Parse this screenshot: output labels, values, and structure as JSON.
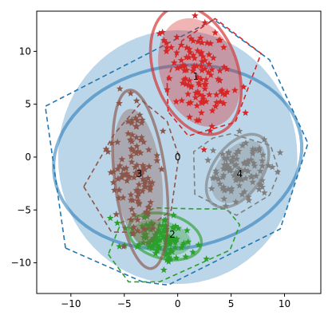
{
  "chart_data": {
    "type": "scatter",
    "title": "",
    "xlabel": "",
    "ylabel": "",
    "xlim": [
      -13.2,
      13.4
    ],
    "ylim": [
      -12.9,
      13.8
    ],
    "x_ticks": [
      -10,
      -5,
      0,
      5,
      10
    ],
    "y_ticks": [
      -10,
      -5,
      0,
      5,
      10
    ],
    "x_tick_labels": [
      "−10",
      "−5",
      "0",
      "5",
      "10"
    ],
    "y_tick_labels": [
      "−10",
      "−5",
      "0",
      "5",
      "10"
    ],
    "grid": false,
    "legend": "none",
    "overall": {
      "label": "0",
      "label_pos": [
        0,
        0
      ],
      "color": "#1f77b4",
      "ellipse_fill": {
        "cx": 0,
        "cy": 0,
        "rx": 11.2,
        "ry": 12,
        "angle": 0
      },
      "ellipse_ring": {
        "cx": 0,
        "cy": 0,
        "rx": 11.7,
        "ry": 8.6,
        "angle": 10
      },
      "hull": [
        [
          -10.5,
          -8.6
        ],
        [
          -3.3,
          -11.8
        ],
        [
          -0.9,
          -12.1
        ],
        [
          9.6,
          -6.8
        ],
        [
          12.2,
          1.3
        ],
        [
          8.6,
          9.2
        ],
        [
          3.4,
          13
        ],
        [
          -12.4,
          4.8
        ]
      ]
    },
    "clusters": [
      {
        "id": "1",
        "color": "#d62728",
        "center": [
          2,
          7.5
        ],
        "spread": [
          1.35,
          2.3
        ],
        "rotation": 20,
        "n": 120,
        "seed": 11,
        "label_pos": [
          1.7,
          7.6
        ],
        "ellipse_fill": {
          "cx": 2,
          "cy": 8,
          "rx": 3.6,
          "ry": 5.3,
          "angle": 20
        },
        "ellipse_ring": {
          "cx": 1.7,
          "cy": 8.2,
          "rx": 3.9,
          "ry": 6.3,
          "angle": 20
        },
        "hull": [
          [
            -0.9,
            4.3
          ],
          [
            -1,
            7.3
          ],
          [
            0.4,
            11
          ],
          [
            3.5,
            13.1
          ],
          [
            7.8,
            9.8
          ],
          [
            5.4,
            3.3
          ],
          [
            1,
            2
          ]
        ]
      },
      {
        "id": "2",
        "color": "#2ca02c",
        "center": [
          -1.8,
          -7.6
        ],
        "spread": [
          1.55,
          0.85
        ],
        "rotation": -15,
        "n": 110,
        "seed": 22,
        "label_pos": [
          -0.5,
          -7.3
        ],
        "ellipse_fill": {
          "cx": -1.5,
          "cy": -7.6,
          "rx": 2.8,
          "ry": 1.6,
          "angle": -15
        },
        "ellipse_ring": {
          "cx": -1.2,
          "cy": -7.5,
          "rx": 3.5,
          "ry": 2.1,
          "angle": -15
        },
        "hull": [
          [
            -6.5,
            -9.2
          ],
          [
            -4.6,
            -11.8
          ],
          [
            -1.7,
            -11.8
          ],
          [
            4.9,
            -8.8
          ],
          [
            5.8,
            -6.4
          ],
          [
            4.6,
            -4.9
          ],
          [
            1.8,
            -4.9
          ],
          [
            -2.1,
            -4.8
          ],
          [
            -5.3,
            -6.2
          ]
        ]
      },
      {
        "id": "3",
        "color": "#8c564b",
        "center": [
          -4,
          -1.3
        ],
        "spread": [
          1.1,
          3.0
        ],
        "rotation": 7,
        "n": 120,
        "seed": 33,
        "label_pos": [
          -3.6,
          -1.6
        ],
        "ellipse_fill": {
          "cx": -3.7,
          "cy": -1.9,
          "rx": 2.2,
          "ry": 6.5,
          "angle": 7
        },
        "ellipse_ring": {
          "cx": -3.5,
          "cy": -2.1,
          "rx": 2.4,
          "ry": 8.5,
          "angle": 7
        },
        "hull": [
          [
            -8.8,
            -2.8
          ],
          [
            -6.2,
            -7.1
          ],
          [
            -3.2,
            -7.1
          ],
          [
            -0.6,
            -5
          ],
          [
            0.1,
            0.1
          ],
          [
            -1,
            3.4
          ],
          [
            -3.3,
            5.3
          ],
          [
            -6,
            2.1
          ]
        ]
      },
      {
        "id": "4",
        "color": "#7f7f7f",
        "center": [
          5.5,
          -1.3
        ],
        "spread": [
          1.5,
          1.6
        ],
        "rotation": -35,
        "n": 100,
        "seed": 44,
        "label_pos": [
          5.8,
          -1.6
        ],
        "ellipse_fill": {
          "cx": 5.7,
          "cy": -1.4,
          "rx": 2.1,
          "ry": 3.3,
          "angle": -35
        },
        "ellipse_ring": {
          "cx": 5.6,
          "cy": -1.3,
          "rx": 2.3,
          "ry": 3.9,
          "angle": -35
        },
        "hull": [
          [
            1.6,
            -3.5
          ],
          [
            1.5,
            0.5
          ],
          [
            3.3,
            1.8
          ],
          [
            5,
            2.2
          ],
          [
            8.7,
            1.1
          ],
          [
            9.5,
            -1.4
          ],
          [
            8.6,
            -3.6
          ],
          [
            5.5,
            -5.5
          ]
        ]
      }
    ]
  }
}
